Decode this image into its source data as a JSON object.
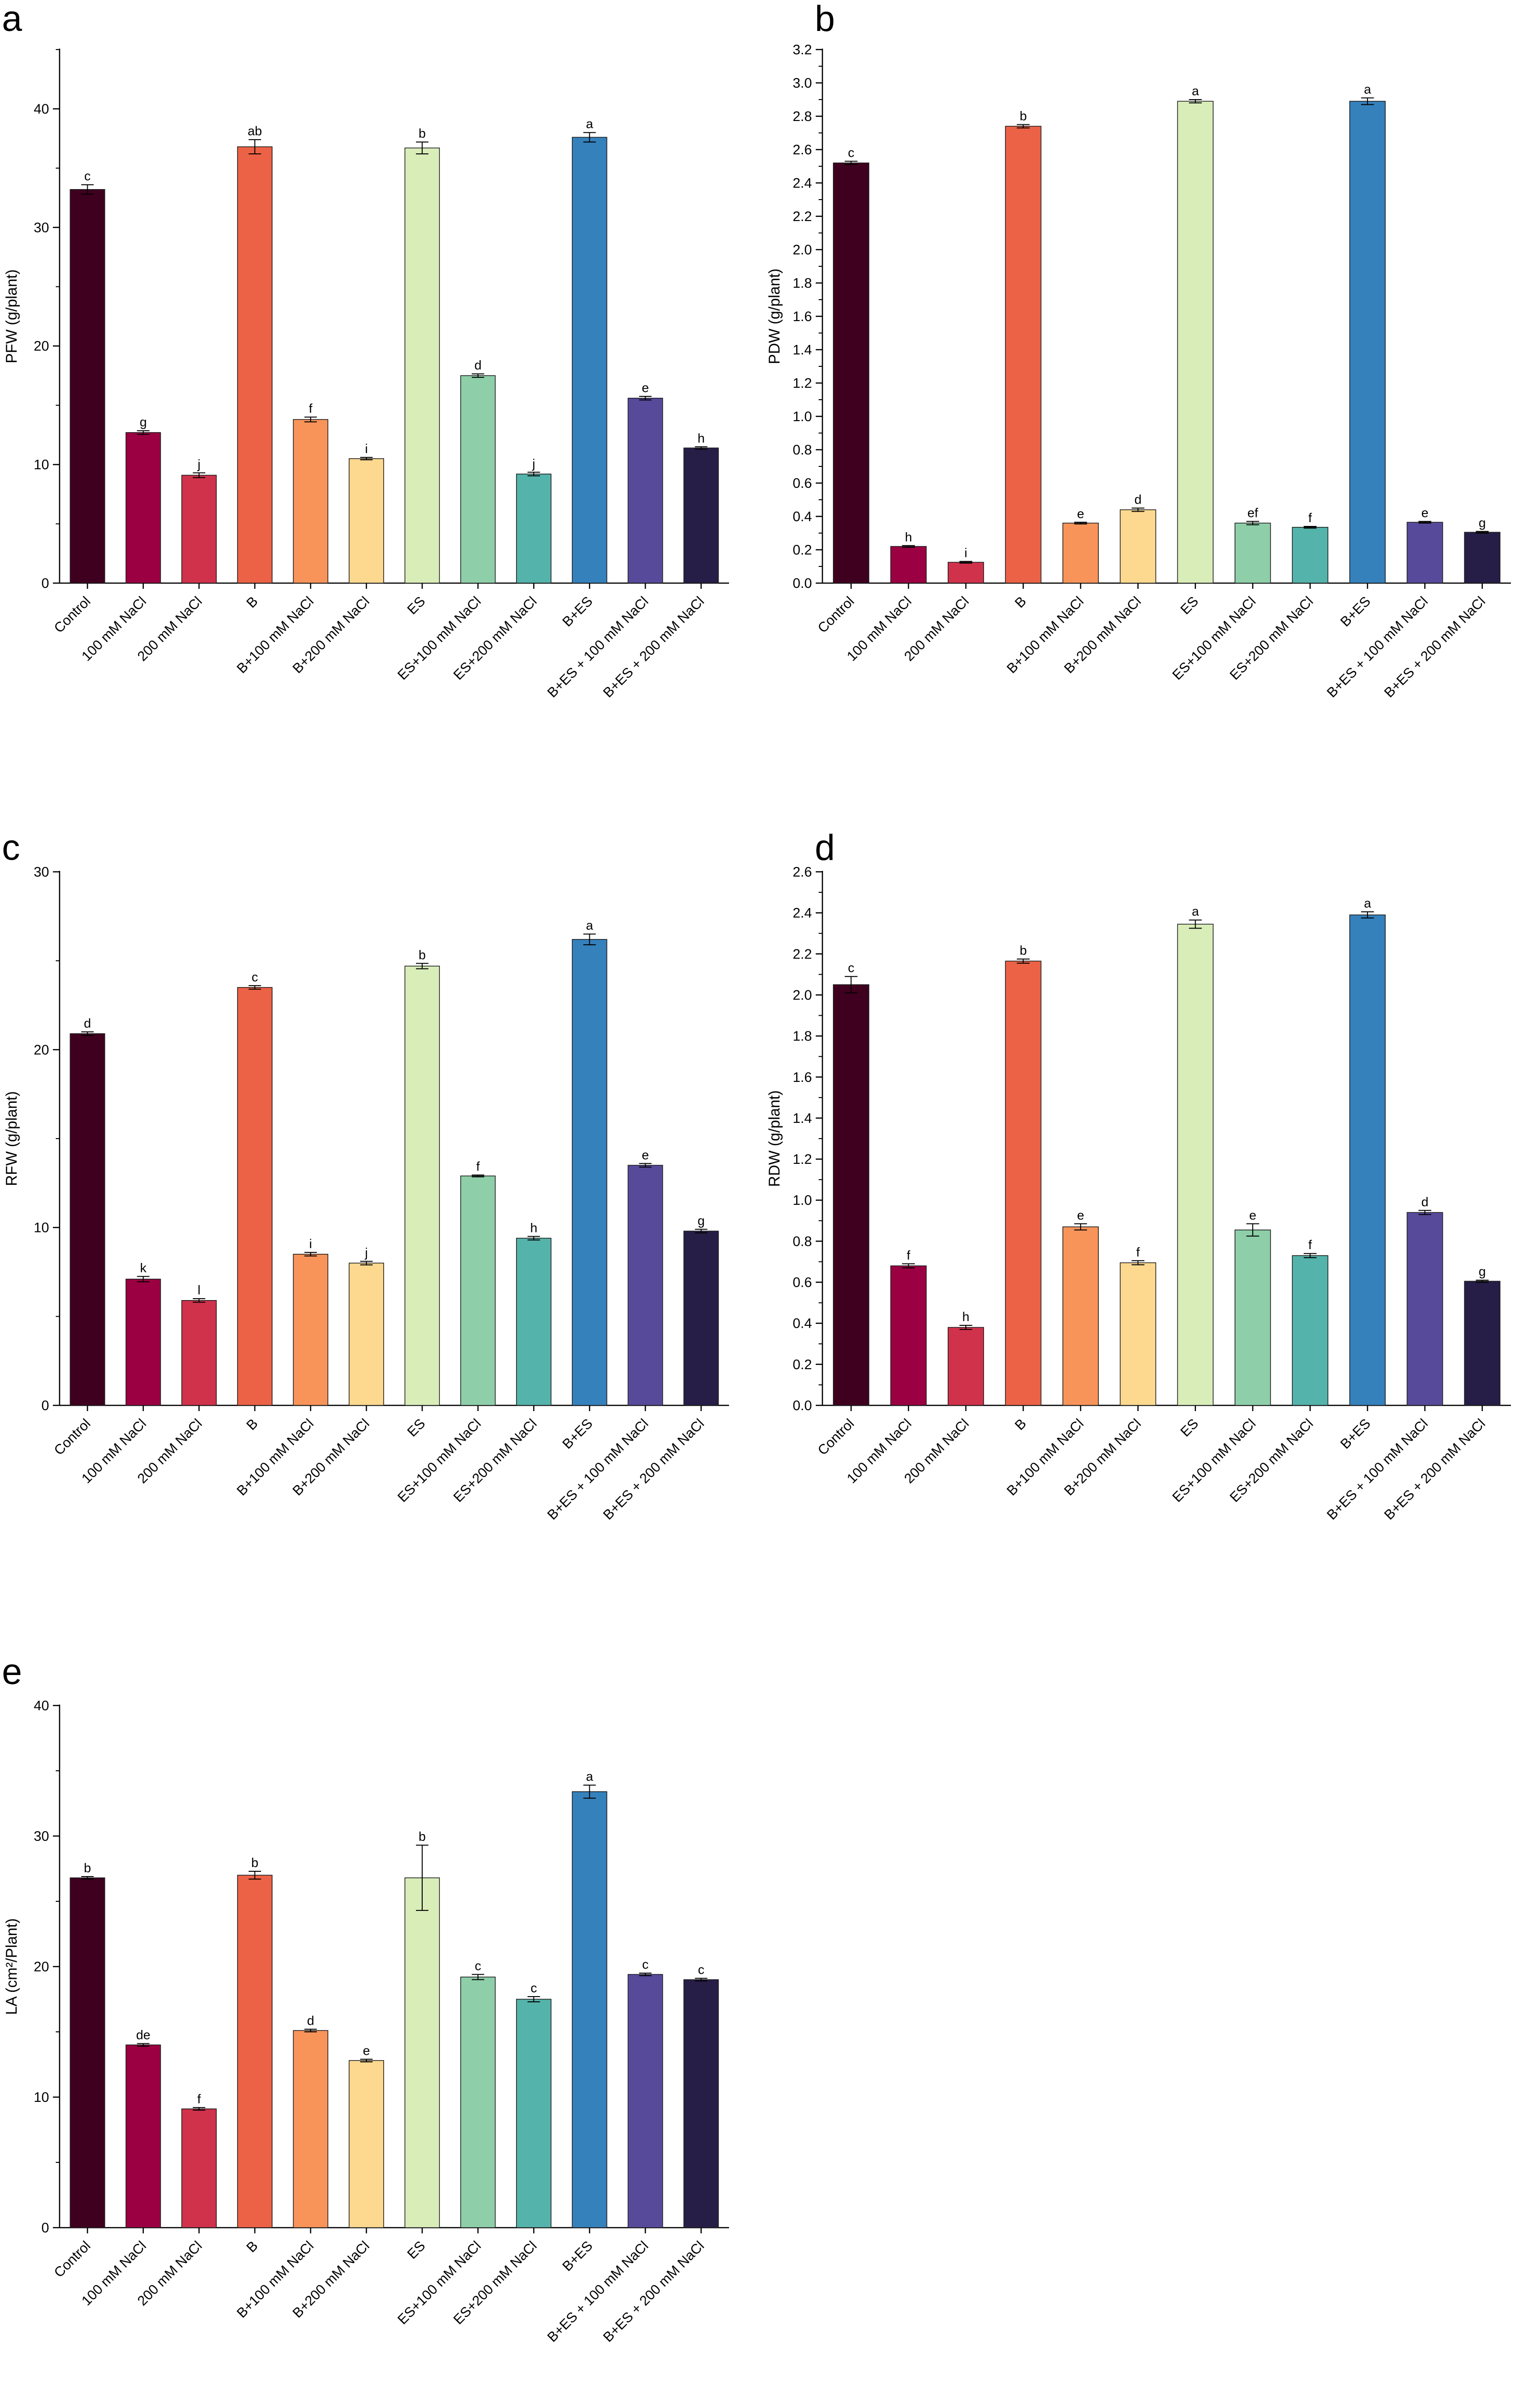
{
  "colors": [
    "#3f0020",
    "#9b0042",
    "#d0324c",
    "#ec6246",
    "#f8945a",
    "#fdd990",
    "#d9edb9",
    "#8ecfa9",
    "#54b3aa",
    "#3581bc",
    "#574a9b",
    "#261e47"
  ],
  "chart_data": [
    {
      "panel": "a",
      "type": "bar",
      "ylabel": "PFW (g/plant)",
      "ylim": [
        0,
        45
      ],
      "yticks": [
        "0",
        "10",
        "20",
        "30",
        "40"
      ],
      "categories": [
        "Control",
        "100 mM NaCl",
        "200 mM NaCl",
        "B",
        "B+100 mM NaCl",
        "B+200 mM NaCl",
        "ES",
        "ES+100 mM NaCl",
        "ES+200 mM NaCl",
        "B+ES",
        "B+ES + 100 mM NaCl",
        "B+ES + 200 mM NaCl"
      ],
      "values": [
        33.2,
        12.7,
        9.1,
        36.8,
        13.8,
        10.5,
        36.7,
        17.5,
        9.2,
        37.6,
        15.6,
        11.4
      ],
      "errors": [
        0.4,
        0.15,
        0.2,
        0.6,
        0.2,
        0.1,
        0.5,
        0.15,
        0.15,
        0.4,
        0.15,
        0.1
      ],
      "letters": [
        "c",
        "g",
        "j",
        "ab",
        "f",
        "i",
        "b",
        "d",
        "j",
        "a",
        "e",
        "h"
      ]
    },
    {
      "panel": "b",
      "type": "bar",
      "ylabel": "PDW (g/plant)",
      "ylim": [
        0,
        3.2
      ],
      "yticks": [
        "0.0",
        "0.2",
        "0.4",
        "0.6",
        "0.8",
        "1.0",
        "1.2",
        "1.4",
        "1.6",
        "1.8",
        "2.0",
        "2.2",
        "2.4",
        "2.6",
        "2.8",
        "3.0",
        "3.2"
      ],
      "categories": [
        "Control",
        "100 mM NaCl",
        "200 mM NaCl",
        "B",
        "B+100 mM NaCl",
        "B+200 mM NaCl",
        "ES",
        "ES+100 mM NaCl",
        "ES+200 mM NaCl",
        "B+ES",
        "B+ES + 100 mM NaCl",
        "B+ES + 200 mM NaCl"
      ],
      "values": [
        2.52,
        0.22,
        0.125,
        2.74,
        0.36,
        0.44,
        2.89,
        0.36,
        0.335,
        2.89,
        0.365,
        0.305
      ],
      "errors": [
        0.01,
        0.005,
        0.005,
        0.01,
        0.005,
        0.01,
        0.01,
        0.01,
        0.005,
        0.02,
        0.005,
        0.005
      ],
      "letters": [
        "c",
        "h",
        "i",
        "b",
        "e",
        "d",
        "a",
        "ef",
        "f",
        "a",
        "e",
        "g"
      ]
    },
    {
      "panel": "c",
      "type": "bar",
      "ylabel": "RFW (g/plant)",
      "ylim": [
        0,
        30
      ],
      "yticks": [
        "0",
        "10",
        "20",
        "30"
      ],
      "categories": [
        "Control",
        "100 mM NaCl",
        "200 mM NaCl",
        "B",
        "B+100 mM NaCl",
        "B+200 mM NaCl",
        "ES",
        "ES+100 mM NaCl",
        "ES+200 mM NaCl",
        "B+ES",
        "B+ES + 100 mM NaCl",
        "B+ES + 200 mM NaCl"
      ],
      "values": [
        20.9,
        7.1,
        5.9,
        23.5,
        8.5,
        8.0,
        24.7,
        12.9,
        9.4,
        26.2,
        13.5,
        9.8
      ],
      "errors": [
        0.1,
        0.15,
        0.1,
        0.1,
        0.1,
        0.1,
        0.15,
        0.05,
        0.1,
        0.3,
        0.1,
        0.1
      ],
      "letters": [
        "d",
        "k",
        "l",
        "c",
        "i",
        "j",
        "b",
        "f",
        "h",
        "a",
        "e",
        "g"
      ]
    },
    {
      "panel": "d",
      "type": "bar",
      "ylabel": "RDW (g/plant)",
      "ylim": [
        0,
        2.6
      ],
      "yticks": [
        "0.0",
        "0.2",
        "0.4",
        "0.6",
        "0.8",
        "1.0",
        "1.2",
        "1.4",
        "1.6",
        "1.8",
        "2.0",
        "2.2",
        "2.4",
        "2.6"
      ],
      "categories": [
        "Control",
        "100 mM NaCl",
        "200 mM NaCl",
        "B",
        "B+100 mM NaCl",
        "B+200 mM NaCl",
        "ES",
        "ES+100 mM NaCl",
        "ES+200 mM NaCl",
        "B+ES",
        "B+ES + 100 mM NaCl",
        "B+ES + 200 mM NaCl"
      ],
      "values": [
        2.05,
        0.68,
        0.38,
        2.165,
        0.87,
        0.695,
        2.345,
        0.855,
        0.73,
        2.39,
        0.94,
        0.605
      ],
      "errors": [
        0.04,
        0.01,
        0.01,
        0.01,
        0.015,
        0.01,
        0.02,
        0.03,
        0.01,
        0.015,
        0.01,
        0.005
      ],
      "letters": [
        "c",
        "f",
        "h",
        "b",
        "e",
        "f",
        "a",
        "e",
        "f",
        "a",
        "d",
        "g"
      ]
    },
    {
      "panel": "e",
      "type": "bar",
      "ylabel": "LA (cm²/Plant)",
      "ylim": [
        0,
        40
      ],
      "yticks": [
        "0",
        "10",
        "20",
        "30",
        "40"
      ],
      "categories": [
        "Control",
        "100 mM NaCl",
        "200 mM NaCl",
        "B",
        "B+100 mM NaCl",
        "B+200 mM NaCl",
        "ES",
        "ES+100 mM NaCl",
        "ES+200 mM NaCl",
        "B+ES",
        "B+ES + 100 mM NaCl",
        "B+ES + 200 mM NaCl"
      ],
      "values": [
        26.8,
        14.0,
        9.1,
        27.0,
        15.1,
        12.8,
        26.8,
        19.2,
        17.5,
        33.4,
        19.4,
        19.0
      ],
      "errors": [
        0.1,
        0.1,
        0.1,
        0.3,
        0.1,
        0.1,
        2.5,
        0.2,
        0.2,
        0.5,
        0.1,
        0.1
      ],
      "letters": [
        "b",
        "de",
        "f",
        "b",
        "d",
        "e",
        "b",
        "c",
        "c",
        "a",
        "c",
        "c"
      ]
    }
  ]
}
